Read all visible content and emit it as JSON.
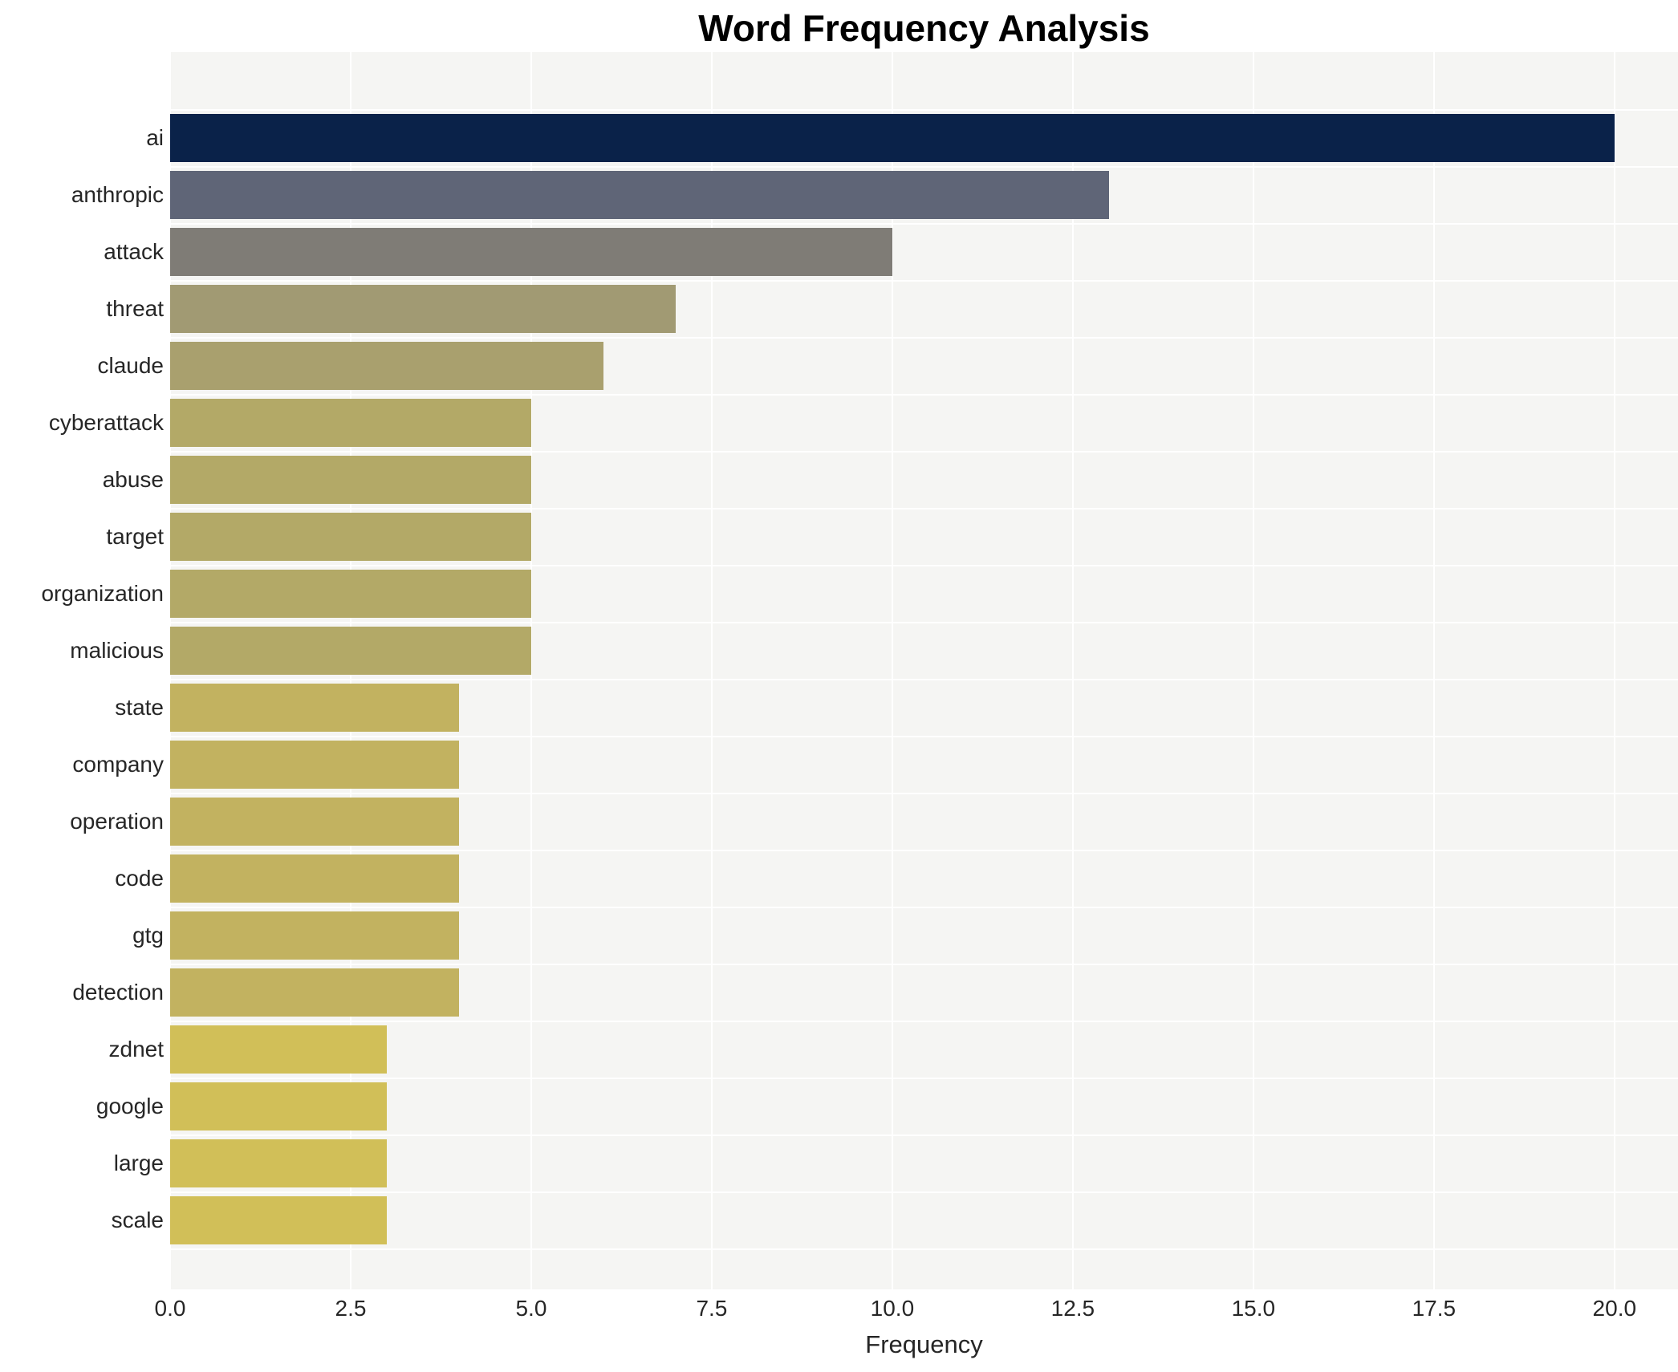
{
  "title": "Word Frequency Analysis",
  "x_axis": {
    "label": "Frequency",
    "tick_labels": [
      "0.0",
      "2.5",
      "5.0",
      "7.5",
      "10.0",
      "12.5",
      "15.0",
      "17.5",
      "20.0"
    ]
  },
  "colors": {
    "plot_background": "#f5f5f3",
    "gridline": "#ffffff",
    "title_text": "#000000",
    "axis_text": "#262626",
    "bar_max": "#0a2249",
    "bar_min": "#d1bf58"
  },
  "chart_data": {
    "type": "bar",
    "orientation": "horizontal",
    "title": "Word Frequency Analysis",
    "xlabel": "Frequency",
    "ylabel": "",
    "categories": [
      "ai",
      "anthropic",
      "attack",
      "threat",
      "claude",
      "cyberattack",
      "abuse",
      "target",
      "organization",
      "malicious",
      "state",
      "company",
      "operation",
      "code",
      "gtg",
      "detection",
      "zdnet",
      "google",
      "large",
      "scale"
    ],
    "values": [
      20,
      13,
      10,
      7,
      6,
      5,
      5,
      5,
      5,
      5,
      4,
      4,
      4,
      4,
      4,
      4,
      3,
      3,
      3,
      3
    ],
    "bar_colors": [
      "#0a2249",
      "#5f6577",
      "#7f7c76",
      "#a19a73",
      "#a9a06e",
      "#b3a967",
      "#b3a967",
      "#b3a967",
      "#b3a967",
      "#b3a967",
      "#c2b260",
      "#c2b260",
      "#c2b260",
      "#c2b260",
      "#c2b260",
      "#c2b260",
      "#d1bf58",
      "#d1bf58",
      "#d1bf58",
      "#d1bf58"
    ],
    "xlim": [
      0,
      20.88
    ],
    "xticks": [
      0,
      2.5,
      5,
      7.5,
      10,
      12.5,
      15,
      17.5,
      20
    ],
    "grid": "vertical-major-white",
    "legend": "none",
    "plot_bg": "#f5f5f3"
  },
  "layout_note": ""
}
